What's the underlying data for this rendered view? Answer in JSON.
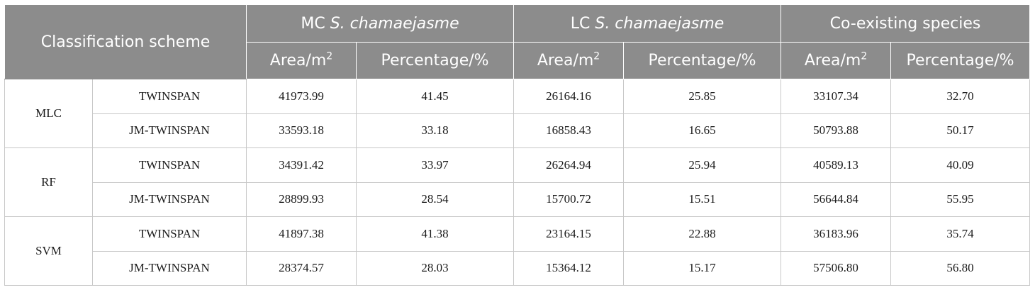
{
  "header": {
    "scheme": "Classification scheme",
    "groups": [
      {
        "prefix": "MC ",
        "italic": "S. chamaejasme"
      },
      {
        "prefix": "LC ",
        "italic": "S. chamaejasme"
      },
      {
        "prefix": "Co-existing species",
        "italic": ""
      }
    ],
    "area_label": "Area/m",
    "area_sup": "2",
    "percentage_label": "Percentage/%"
  },
  "rows": [
    {
      "scheme": "MLC",
      "methods": [
        {
          "name": "TWINSPAN",
          "values": [
            "41973.99",
            "41.45",
            "26164.16",
            "25.85",
            "33107.34",
            "32.70"
          ]
        },
        {
          "name": "JM-TWINSPAN",
          "values": [
            "33593.18",
            "33.18",
            "16858.43",
            "16.65",
            "50793.88",
            "50.17"
          ]
        }
      ]
    },
    {
      "scheme": "RF",
      "methods": [
        {
          "name": "TWINSPAN",
          "values": [
            "34391.42",
            "33.97",
            "26264.94",
            "25.94",
            "40589.13",
            "40.09"
          ]
        },
        {
          "name": "JM-TWINSPAN",
          "values": [
            "28899.93",
            "28.54",
            "15700.72",
            "15.51",
            "56644.84",
            "55.95"
          ]
        }
      ]
    },
    {
      "scheme": "SVM",
      "methods": [
        {
          "name": "TWINSPAN",
          "values": [
            "41897.38",
            "41.38",
            "23164.15",
            "22.88",
            "36183.96",
            "35.74"
          ]
        },
        {
          "name": "JM-TWINSPAN",
          "values": [
            "28374.57",
            "28.03",
            "15364.12",
            "15.17",
            "57506.80",
            "56.80"
          ]
        }
      ]
    }
  ]
}
